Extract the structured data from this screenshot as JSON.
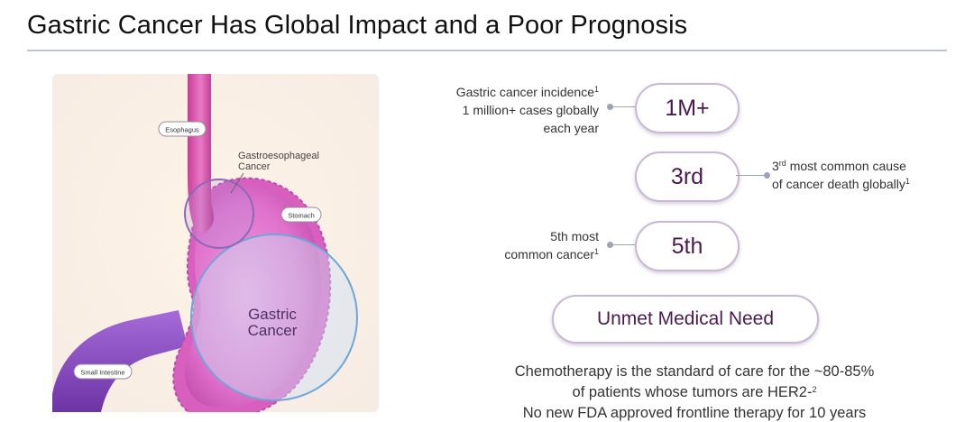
{
  "title": "Gastric Cancer Has Global Impact and a Poor Prognosis",
  "diagram": {
    "esophagus_label": "Esophagus",
    "stomach_label": "Stomach",
    "small_intestine_label": "Small Intestine",
    "ge_cancer_label_line1": "Gastroesophageal",
    "ge_cancer_label_line2": "Cancer",
    "gastric_cancer_line1": "Gastric",
    "gastric_cancer_line2": "Cancer"
  },
  "stats": {
    "incidence": {
      "value": "1M+",
      "label_title": "Gastric cancer incidence",
      "label_title_sup": "1",
      "label_line2": "1 million+ cases globally",
      "label_line3": "each year"
    },
    "death_rank": {
      "value": "3rd",
      "label_prefix": "3",
      "label_ordinal_sup": "rd",
      "label_rest": " most common cause",
      "label_line2": "of cancer death globally",
      "label_line2_sup": "1"
    },
    "cancer_rank": {
      "value": "5th",
      "label_line1": "5th most",
      "label_line2": "common cancer",
      "label_line2_sup": "1"
    }
  },
  "unmet": {
    "label": "Unmet Medical Need",
    "line1": "Chemotherapy is the standard of care for the ~80-85%",
    "line2": "of patients whose tumors are HER2-",
    "line2_sup": "2",
    "partial_line": "No new FDA approved frontline therapy for 10 years"
  },
  "colors": {
    "accent_purple": "#4a1a4e",
    "pill_border": "#c9b7d3",
    "stomach_magenta": "#d75fc2",
    "intestine_purple": "#8a4bc4"
  }
}
